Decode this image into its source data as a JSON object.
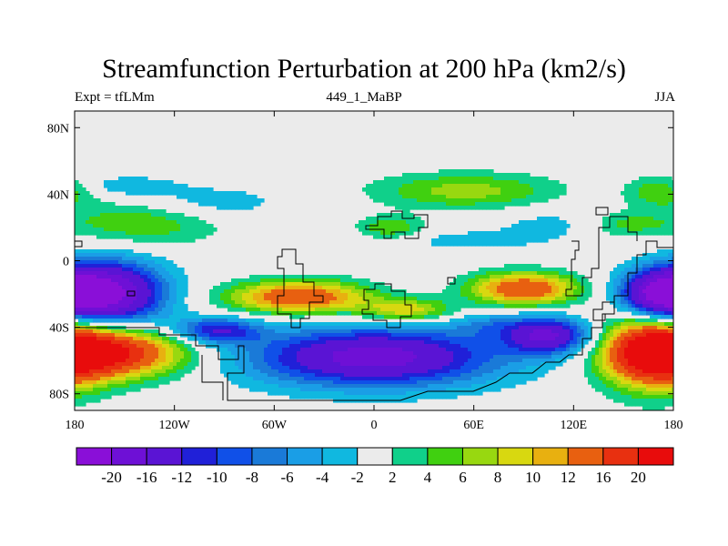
{
  "title": "Streamfunction Perturbation at 200 hPa (km2/s)",
  "left_string": "Expt = tfLMm",
  "center_string": "449_1_MaBP",
  "right_string": "JJA",
  "map": {
    "projection": "cylindrical-equidistant",
    "lon_range": [
      -180,
      180
    ],
    "lat_range": [
      -90,
      90
    ],
    "y_ticks": [
      80,
      40,
      0,
      -40,
      -80
    ],
    "y_tick_labels": [
      "80N",
      "40N",
      "0",
      "40S",
      "80S"
    ],
    "x_ticks": [
      -180,
      -120,
      -60,
      0,
      60,
      120,
      180
    ],
    "x_tick_labels": [
      "180",
      "120W",
      "60W",
      "0",
      "60E",
      "120E",
      "180"
    ],
    "background_color": "#ebebeb"
  },
  "colorbar": {
    "levels": [
      -20,
      -16,
      -12,
      -10,
      -8,
      -6,
      -4,
      -2,
      2,
      4,
      6,
      8,
      10,
      12,
      16,
      20
    ],
    "labels": [
      "-20",
      "-16",
      "-12",
      "-10",
      "-8",
      "-6",
      "-4",
      "-2",
      "2",
      "4",
      "6",
      "8",
      "10",
      "12",
      "16",
      "20"
    ],
    "colors": [
      "#8a0fd8",
      "#6e10d6",
      "#5a14d4",
      "#2020d8",
      "#1050e8",
      "#1a7ad8",
      "#1a9ee6",
      "#10b8e0",
      "#ebebeb",
      "#10d08a",
      "#40d010",
      "#98d810",
      "#d8d810",
      "#e8b010",
      "#e86010",
      "#e83010",
      "#e80c0c"
    ]
  },
  "blobs": [
    {
      "lon": -160,
      "lat": -20,
      "rlon": 34,
      "rlat": 20,
      "value": -21
    },
    {
      "lon": -160,
      "lat": -55,
      "rlon": 46,
      "rlat": 15,
      "value": 21
    },
    {
      "lon": -140,
      "lat": 23,
      "rlon": 48,
      "rlat": 14,
      "value": 6
    },
    {
      "lon": -150,
      "lat": 45,
      "rlon": 32,
      "rlat": 6,
      "value": -4
    },
    {
      "lon": -45,
      "lat": -22,
      "rlon": 42,
      "rlat": 10,
      "value": 16
    },
    {
      "lon": 20,
      "lat": -30,
      "rlon": 28,
      "rlat": 7,
      "value": 10
    },
    {
      "lon": 90,
      "lat": -17,
      "rlon": 32,
      "rlat": 10,
      "value": 16
    },
    {
      "lon": 0,
      "lat": -58,
      "rlon": 75,
      "rlat": 18,
      "value": -18
    },
    {
      "lon": -95,
      "lat": -42,
      "rlon": 26,
      "rlat": 8,
      "value": -12
    },
    {
      "lon": 105,
      "lat": -45,
      "rlon": 26,
      "rlat": 11,
      "value": -16
    },
    {
      "lon": 168,
      "lat": -55,
      "rlon": 30,
      "rlat": 22,
      "value": 20
    },
    {
      "lon": 172,
      "lat": -20,
      "rlon": 24,
      "rlat": 14,
      "value": -18
    },
    {
      "lon": 55,
      "lat": 42,
      "rlon": 55,
      "rlat": 11,
      "value": 7
    },
    {
      "lon": 172,
      "lat": 42,
      "rlon": 20,
      "rlat": 9,
      "value": 6
    },
    {
      "lon": -100,
      "lat": 35,
      "rlon": 45,
      "rlat": 10,
      "value": -4
    },
    {
      "lon": 10,
      "lat": 20,
      "rlon": 20,
      "rlat": 7,
      "value": 6
    },
    {
      "lon": 110,
      "lat": 22,
      "rlon": 42,
      "rlat": 10,
      "value": -3
    },
    {
      "lon": 150,
      "lat": 22,
      "rlon": 25,
      "rlat": 8,
      "value": 5
    },
    {
      "lon": 55,
      "lat": 12,
      "rlon": 45,
      "rlat": 6,
      "value": -3
    },
    {
      "lon": 70,
      "lat": -38,
      "rlon": 25,
      "rlat": 8,
      "value": -4
    }
  ]
}
